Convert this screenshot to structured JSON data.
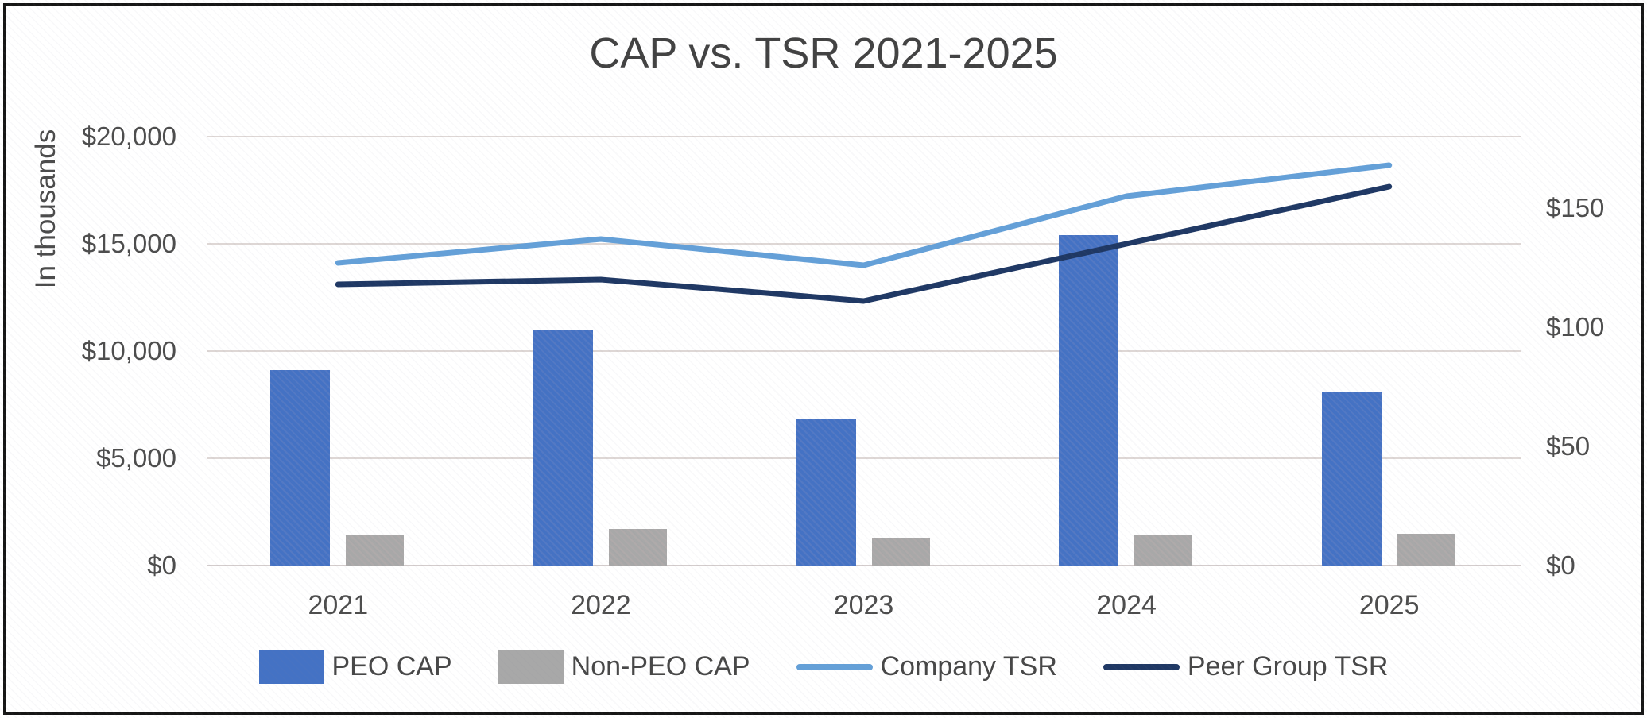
{
  "chart_data": {
    "type": "combo-bar-line",
    "title": "CAP vs. TSR 2021-2025",
    "categories": [
      "2021",
      "2022",
      "2023",
      "2024",
      "2025"
    ],
    "series": [
      {
        "name": "PEO CAP",
        "render": "bar",
        "axis": "left",
        "color": "#4472c4",
        "values": [
          9100,
          10950,
          6800,
          15400,
          8100
        ]
      },
      {
        "name": "Non-PEO CAP",
        "render": "bar",
        "axis": "left",
        "color": "#a8a8a8",
        "values": [
          1450,
          1700,
          1300,
          1400,
          1500
        ]
      },
      {
        "name": "Company TSR",
        "render": "line",
        "axis": "right",
        "color": "#64a0d8",
        "values": [
          127,
          137,
          126,
          155,
          168
        ]
      },
      {
        "name": "Peer Group TSR",
        "render": "line",
        "axis": "right",
        "color": "#1f3864",
        "values": [
          118,
          120,
          111,
          135,
          159
        ]
      }
    ],
    "left_axis": {
      "title": "In thousands",
      "min": 0,
      "max": 20000,
      "tick_interval": 5000,
      "tick_labels": [
        "$0",
        "$5,000",
        "$10,000",
        "$15,000",
        "$20,000"
      ]
    },
    "right_axis": {
      "min": 0,
      "max": 180,
      "tick_interval": 50,
      "tick_labels": [
        "$0",
        "$50",
        "$100",
        "$150"
      ]
    },
    "grid": true,
    "legend_position": "bottom"
  }
}
